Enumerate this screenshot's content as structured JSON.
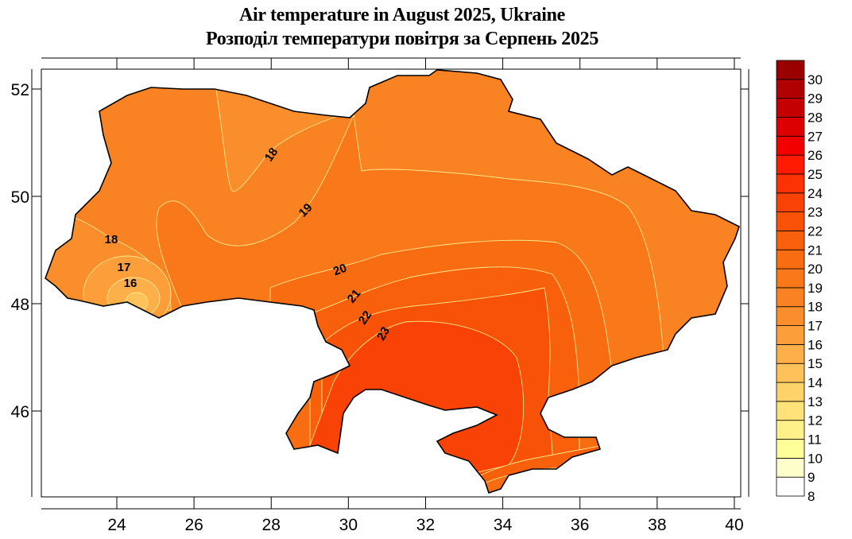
{
  "title": {
    "line1": "Air temperature in August 2025, Ukraine",
    "line2": "Розподіл температури повітря за Серпень 2025"
  },
  "chart_data": {
    "type": "heatmap",
    "title": "Air temperature in August 2025, Ukraine",
    "subtitle": "Розподіл температури повітря за Серпень 2025",
    "xlabel": "",
    "ylabel": "",
    "xlim": [
      22,
      40.2
    ],
    "ylim": [
      44.4,
      52.4
    ],
    "x_ticks": [
      "24",
      "26",
      "28",
      "30",
      "32",
      "34",
      "36",
      "38",
      "40"
    ],
    "y_ticks": [
      "52",
      "50",
      "48",
      "46"
    ],
    "colorbar": {
      "levels": [
        8,
        9,
        10,
        11,
        12,
        13,
        14,
        15,
        16,
        17,
        18,
        19,
        20,
        21,
        22,
        23,
        24,
        25,
        26,
        27,
        28,
        29,
        30
      ],
      "labels": [
        "8",
        "9",
        "10",
        "11",
        "12",
        "13",
        "14",
        "15",
        "16",
        "17",
        "18",
        "19",
        "20",
        "21",
        "22",
        "23",
        "24",
        "25",
        "26",
        "27",
        "28",
        "29",
        "30"
      ],
      "colors": [
        "#ffffff",
        "#ffffcc",
        "#ffff99",
        "#fff08a",
        "#ffe27a",
        "#ffd36a",
        "#ffc15a",
        "#fdaf4a",
        "#fc9e3a",
        "#fa8e2c",
        "#f98322",
        "#f8781a",
        "#f86c12",
        "#f8600c",
        "#f85208",
        "#f84206",
        "#fc3204",
        "#ff1a02",
        "#f20000",
        "#dc0000",
        "#c40000",
        "#b00000",
        "#9a0000"
      ],
      "placement": "right"
    },
    "contour_labels": [
      "18",
      "19",
      "20",
      "21",
      "22",
      "23",
      "18",
      "17",
      "16"
    ]
  }
}
